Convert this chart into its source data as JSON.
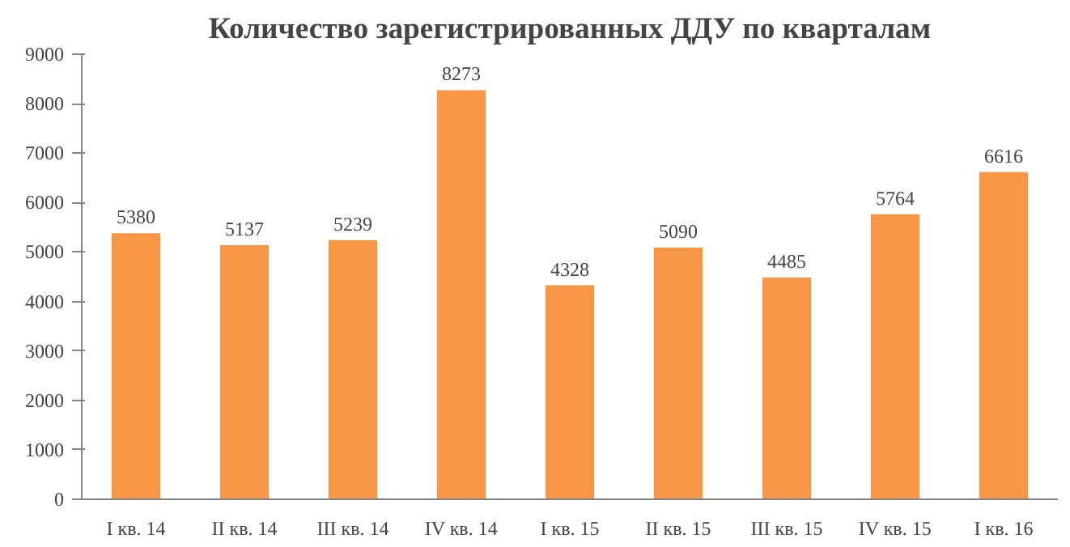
{
  "chart_data": {
    "type": "bar",
    "title": "Количество зарегистрированных ДДУ по кварталам",
    "categories": [
      "I кв. 14",
      "II кв. 14",
      "III кв. 14",
      "IV кв. 14",
      "I кв. 15",
      "II кв. 15",
      "III кв. 15",
      "IV кв. 15",
      "I кв. 16"
    ],
    "values": [
      5380,
      5137,
      5239,
      8273,
      4328,
      5090,
      4485,
      5764,
      6616
    ],
    "color": "#f79646",
    "ylim": [
      0,
      9000
    ],
    "yticks": [
      0,
      1000,
      2000,
      3000,
      4000,
      5000,
      6000,
      7000,
      8000,
      9000
    ],
    "grid": false,
    "data_labels": true
  }
}
